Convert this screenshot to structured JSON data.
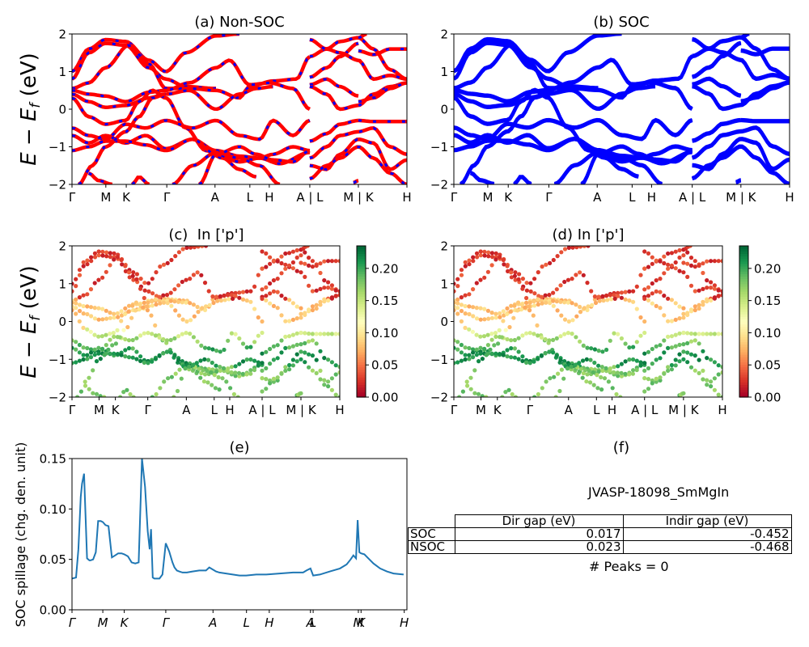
{
  "colors": {
    "nonsoc_line": "#ff0000",
    "nonsoc_dash": "#0000ff",
    "soc_line": "#0000ff",
    "spillage_line": "#1f77b4",
    "colormap": [
      "#a50026",
      "#d73027",
      "#f46d43",
      "#fdae61",
      "#fee08b",
      "#ffffbf",
      "#d9ef8b",
      "#a6d96a",
      "#66bd63",
      "#1a9850",
      "#006837"
    ]
  },
  "chart_data": [
    {
      "id": "a",
      "type": "line",
      "title": "(a) Non-SOC",
      "ylabel": "E − E_f (eV)",
      "ylabel_parts": {
        "e": "E",
        "minus": "−",
        "ef": "E",
        "sub": "f",
        "unit": "(eV)"
      },
      "ylim": [
        -2,
        2
      ],
      "yticks": [
        "−2",
        "−1",
        "0",
        "1",
        "2"
      ],
      "yvalues": [
        -2,
        -1,
        0,
        1,
        2
      ],
      "xticks": [
        "Γ",
        "M",
        "K",
        "Γ",
        "A",
        "L",
        "H",
        "A | L",
        "M | K",
        "H"
      ],
      "xpos": [
        0,
        0.101,
        0.162,
        0.283,
        0.427,
        0.531,
        0.589,
        0.71,
        0.855,
        1.0
      ],
      "grid": false
    },
    {
      "id": "b",
      "type": "line",
      "title": "(b) SOC",
      "ylim": [
        -2,
        2
      ],
      "yticks": [
        "−2",
        "−1",
        "0",
        "1",
        "2"
      ],
      "yvalues": [
        -2,
        -1,
        0,
        1,
        2
      ],
      "xticks": [
        "Γ",
        "M",
        "K",
        "Γ",
        "A",
        "L",
        "H",
        "A | L",
        "M | K",
        "H"
      ],
      "xpos": [
        0,
        0.101,
        0.162,
        0.283,
        0.427,
        0.531,
        0.589,
        0.71,
        0.855,
        1.0
      ],
      "grid": false
    },
    {
      "id": "c",
      "type": "scatter",
      "title": "(c)  In ['p']",
      "ylabel": "E − E_f (eV)",
      "ylabel_parts": {
        "e": "E",
        "minus": "−",
        "ef": "E",
        "sub": "f",
        "unit": "(eV)"
      },
      "ylim": [
        -2,
        2
      ],
      "yticks": [
        "−2",
        "−1",
        "0",
        "1",
        "2"
      ],
      "yvalues": [
        -2,
        -1,
        0,
        1,
        2
      ],
      "xticks": [
        "Γ",
        "M",
        "K",
        "Γ",
        "A",
        "L",
        "H",
        "A | L",
        "M | K",
        "H"
      ],
      "xpos": [
        0,
        0.101,
        0.162,
        0.283,
        0.427,
        0.531,
        0.589,
        0.71,
        0.855,
        1.0
      ],
      "colorbar": {
        "range": [
          0,
          0.235
        ],
        "ticks": [
          "0.00",
          "0.05",
          "0.10",
          "0.15",
          "0.20"
        ],
        "tick_values": [
          0,
          0.05,
          0.1,
          0.15,
          0.2
        ]
      }
    },
    {
      "id": "d",
      "type": "scatter",
      "title": "(d) In ['p']",
      "ylim": [
        -2,
        2
      ],
      "yticks": [
        "−2",
        "−1",
        "0",
        "1",
        "2"
      ],
      "yvalues": [
        -2,
        -1,
        0,
        1,
        2
      ],
      "xticks": [
        "Γ",
        "M",
        "K",
        "Γ",
        "A",
        "L",
        "H",
        "A | L",
        "M | K",
        "H"
      ],
      "xpos": [
        0,
        0.101,
        0.162,
        0.283,
        0.427,
        0.531,
        0.589,
        0.71,
        0.855,
        1.0
      ],
      "colorbar": {
        "range": [
          0,
          0.235
        ],
        "ticks": [
          "0.00",
          "0.05",
          "0.10",
          "0.15",
          "0.20"
        ],
        "tick_values": [
          0,
          0.05,
          0.1,
          0.15,
          0.2
        ]
      }
    },
    {
      "id": "e",
      "type": "line",
      "title": "(e)",
      "ylabel": "SOC spillage (chg. den. unit)",
      "ylim": [
        0,
        0.15
      ],
      "yticks": [
        "0.00",
        "0.05",
        "0.10",
        "0.15"
      ],
      "yvalues": [
        0,
        0.05,
        0.1,
        0.15
      ],
      "xticks": [
        "Γ",
        "M",
        "K",
        "Γ",
        "A",
        "L",
        "H",
        "A",
        "L",
        "M",
        "K",
        "H"
      ],
      "xpos": [
        0,
        0.092,
        0.156,
        0.28,
        0.421,
        0.521,
        0.589,
        0.712,
        0.72,
        0.855,
        0.863,
        0.992
      ],
      "series": [
        {
          "name": "spillage",
          "x": [
            0,
            0.012,
            0.019,
            0.026,
            0.03,
            0.036,
            0.045,
            0.052,
            0.055,
            0.063,
            0.071,
            0.078,
            0.086,
            0.092,
            0.1,
            0.109,
            0.119,
            0.129,
            0.138,
            0.148,
            0.156,
            0.167,
            0.178,
            0.189,
            0.199,
            0.209,
            0.218,
            0.226,
            0.232,
            0.236,
            0.241,
            0.246,
            0.249,
            0.252,
            0.261,
            0.27,
            0.28,
            0.29,
            0.3,
            0.306,
            0.313,
            0.32,
            0.33,
            0.343,
            0.36,
            0.38,
            0.4,
            0.41,
            0.42,
            0.43,
            0.44,
            0.46,
            0.48,
            0.5,
            0.52,
            0.55,
            0.58,
            0.62,
            0.66,
            0.69,
            0.7,
            0.712,
            0.72,
            0.74,
            0.77,
            0.8,
            0.82,
            0.832,
            0.84,
            0.848,
            0.853,
            0.858,
            0.863,
            0.873,
            0.882,
            0.9,
            0.92,
            0.94,
            0.96,
            0.99
          ],
          "y": [
            0.031,
            0.032,
            0.06,
            0.112,
            0.125,
            0.135,
            0.051,
            0.049,
            0.049,
            0.05,
            0.057,
            0.088,
            0.088,
            0.087,
            0.084,
            0.083,
            0.052,
            0.054,
            0.056,
            0.056,
            0.055,
            0.053,
            0.047,
            0.046,
            0.047,
            0.15,
            0.122,
            0.078,
            0.06,
            0.08,
            0.032,
            0.031,
            0.031,
            0.031,
            0.031,
            0.035,
            0.066,
            0.058,
            0.047,
            0.042,
            0.039,
            0.038,
            0.037,
            0.037,
            0.038,
            0.039,
            0.039,
            0.042,
            0.04,
            0.038,
            0.037,
            0.036,
            0.035,
            0.034,
            0.034,
            0.035,
            0.035,
            0.036,
            0.037,
            0.037,
            0.039,
            0.041,
            0.034,
            0.035,
            0.038,
            0.041,
            0.045,
            0.05,
            0.054,
            0.051,
            0.089,
            0.057,
            0.056,
            0.055,
            0.052,
            0.046,
            0.041,
            0.038,
            0.036,
            0.035
          ]
        }
      ],
      "grid": false
    }
  ],
  "panel_f": {
    "title": "(f)",
    "material": "JVASP-18098_SmMgIn",
    "table": {
      "columns": [
        "Dir gap (eV)",
        "Indir gap (eV)"
      ],
      "rows": [
        {
          "label": "SOC",
          "dir": "0.017",
          "indir": "-0.452"
        },
        {
          "label": "NSOC",
          "dir": "0.023",
          "indir": "-0.468"
        }
      ]
    },
    "peaks": "# Peaks = 0"
  }
}
